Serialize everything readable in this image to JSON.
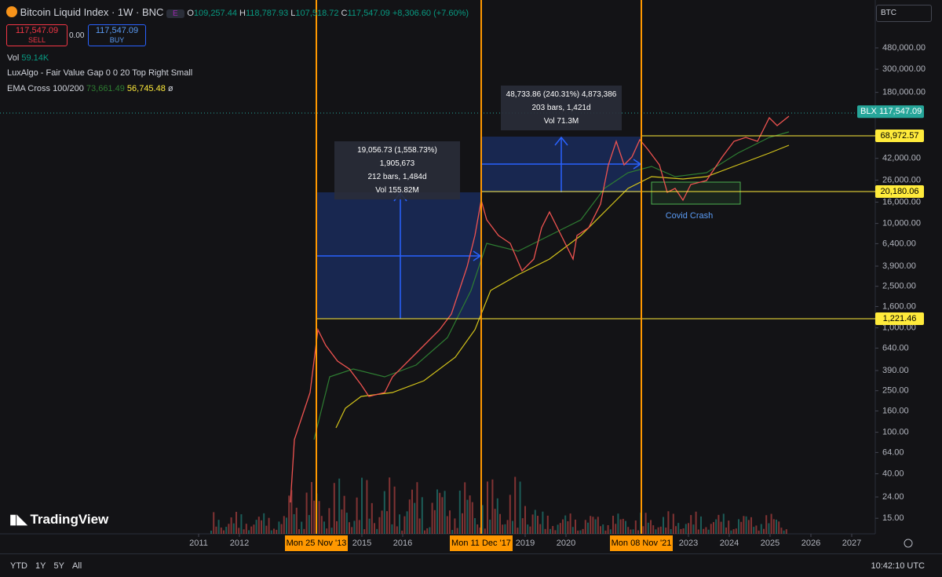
{
  "header": {
    "symbol": "Bitcoin Liquid Index · 1W · BNC",
    "badge": "E",
    "open_label": "O",
    "open": "109,257.44",
    "high_label": "H",
    "high": "118,787.93",
    "low_label": "L",
    "low": "107,518.72",
    "close_label": "C",
    "close": "117,547.09",
    "change": "+8,306.60 (+7.60%)"
  },
  "trade": {
    "sell_price": "117,547.09",
    "sell": "SELL",
    "spread": "0.00",
    "buy_price": "117,547.09",
    "buy": "BUY"
  },
  "indicators": {
    "vol_label": "Vol",
    "vol": "59.14K",
    "fvg": "LuxAlgo - Fair Value Gap 0 0 20 Top Right Small",
    "ema_label": "EMA Cross 100/200",
    "ema_fast": "73,661.49",
    "ema_slow": "56,745.48",
    "ema_mark": "ø"
  },
  "symbol_select": "BTC",
  "price_axis": {
    "ticks": [
      {
        "value": 480000,
        "label": "480,000.00"
      },
      {
        "value": 300000,
        "label": "300,000.00"
      },
      {
        "value": 180000,
        "label": "180,000.00"
      },
      {
        "value": 42000,
        "label": "42,000.00"
      },
      {
        "value": 26000,
        "label": "26,000.00"
      },
      {
        "value": 16000,
        "label": "16,000.00"
      },
      {
        "value": 10000,
        "label": "10,000.00"
      },
      {
        "value": 6400,
        "label": "6,400.00"
      },
      {
        "value": 3900,
        "label": "3,900.00"
      },
      {
        "value": 2500,
        "label": "2,500.00"
      },
      {
        "value": 1600,
        "label": "1,600.00"
      },
      {
        "value": 1000,
        "label": "1,000.00"
      },
      {
        "value": 640,
        "label": "640.00"
      },
      {
        "value": 390,
        "label": "390.00"
      },
      {
        "value": 250,
        "label": "250.00"
      },
      {
        "value": 160,
        "label": "160.00"
      },
      {
        "value": 100,
        "label": "100.00"
      },
      {
        "value": 64,
        "label": "64.00"
      },
      {
        "value": 40,
        "label": "40.00"
      },
      {
        "value": 24,
        "label": "24.00"
      },
      {
        "value": 15,
        "label": "15.00"
      }
    ],
    "last_name": "BLX",
    "last": {
      "value": 117547.09,
      "label": "117,547.09"
    },
    "levels": [
      {
        "value": 68972.57,
        "label": "68,972.57"
      },
      {
        "value": 20180.06,
        "label": "20,180.06"
      },
      {
        "value": 1221.46,
        "label": "1,221.46"
      }
    ]
  },
  "time_axis": {
    "ticks": [
      2011,
      2012,
      2015,
      2016,
      2019,
      2020,
      2023,
      2024,
      2025,
      2026,
      2027
    ],
    "markers": [
      "Mon 25 Nov '13",
      "Mon 11 Dec '17",
      "Mon 08 Nov '21"
    ]
  },
  "measures": [
    {
      "line1": "19,056.73 (1,558.73%) 1,905,673",
      "line2": "212 bars, 1,484d",
      "line3": "Vol 155.82M"
    },
    {
      "line1": "48,733.86 (240.31%) 4,873,386",
      "line2": "203 bars, 1,421d",
      "line3": "Vol 71.3M"
    }
  ],
  "annotation": "Covid Crash",
  "logo": "TradingView",
  "toolbar": {
    "ranges": [
      "YTD",
      "1Y",
      "5Y",
      "All"
    ],
    "clock": "10:42:10 UTC"
  }
}
